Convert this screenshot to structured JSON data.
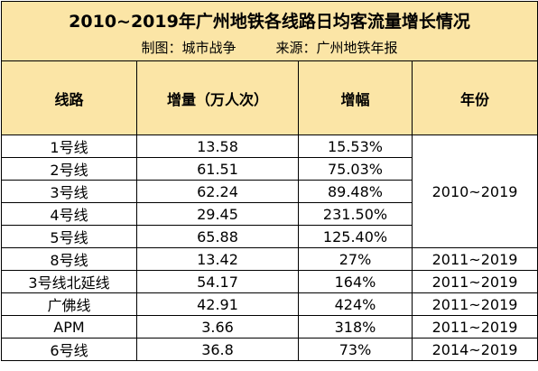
{
  "title": "2010~2019年广州地铁各线路日均客流量增长情况",
  "subtitle": {
    "author": "制图：城市战争",
    "source": "来源：广州地铁年报"
  },
  "columns": [
    "线路",
    "增量（万人次）",
    "增幅",
    "年份"
  ],
  "group_years": "2010~2019",
  "rows": [
    {
      "line": "1号线",
      "increase": "13.58",
      "growth": "15.53%"
    },
    {
      "line": "2号线",
      "increase": "61.51",
      "growth": "75.03%"
    },
    {
      "line": "3号线",
      "increase": "62.24",
      "growth": "89.48%"
    },
    {
      "line": "4号线",
      "increase": "29.45",
      "growth": "231.50%"
    },
    {
      "line": "5号线",
      "increase": "65.88",
      "growth": "125.40%"
    },
    {
      "line": "8号线",
      "increase": "13.42",
      "growth": "27%",
      "years": "2011~2019"
    },
    {
      "line": "3号线北延线",
      "increase": "54.17",
      "growth": "164%",
      "years": "2011~2019"
    },
    {
      "line": "广佛线",
      "increase": "42.91",
      "growth": "424%",
      "years": "2011~2019"
    },
    {
      "line": "APM",
      "increase": "3.66",
      "growth": "318%",
      "years": "2011~2019"
    },
    {
      "line": "6号线",
      "increase": "36.8",
      "growth": "73%",
      "years": "2014~2019"
    }
  ]
}
